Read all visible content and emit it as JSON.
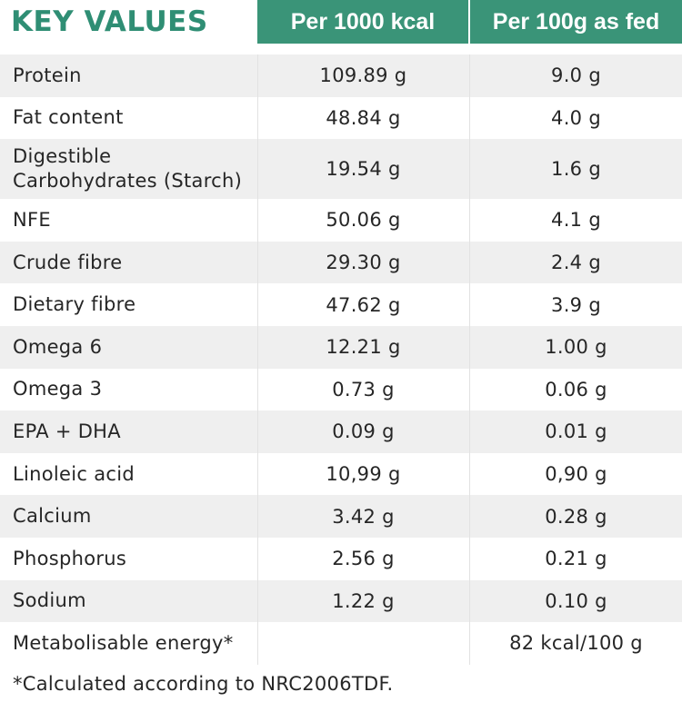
{
  "table": {
    "title": "KEY VALUES",
    "columns": [
      "Per 1000 kcal",
      "Per 100g as fed"
    ],
    "rows": [
      {
        "label": "Protein",
        "per_1000_kcal": "109.89 g",
        "per_100g": "9.0 g"
      },
      {
        "label": "Fat content",
        "per_1000_kcal": "48.84 g",
        "per_100g": "4.0 g"
      },
      {
        "label": "Digestible Carbohydrates (Starch)",
        "per_1000_kcal": "19.54 g",
        "per_100g": "1.6 g"
      },
      {
        "label": "NFE",
        "per_1000_kcal": "50.06 g",
        "per_100g": "4.1 g"
      },
      {
        "label": "Crude fibre",
        "per_1000_kcal": "29.30 g",
        "per_100g": "2.4 g"
      },
      {
        "label": "Dietary fibre",
        "per_1000_kcal": "47.62 g",
        "per_100g": "3.9 g"
      },
      {
        "label": "Omega 6",
        "per_1000_kcal": "12.21 g",
        "per_100g": "1.00 g"
      },
      {
        "label": "Omega 3",
        "per_1000_kcal": "0.73 g",
        "per_100g": "0.06 g"
      },
      {
        "label": "EPA + DHA",
        "per_1000_kcal": "0.09 g",
        "per_100g": "0.01 g"
      },
      {
        "label": "Linoleic acid",
        "per_1000_kcal": "10,99 g",
        "per_100g": "0,90 g"
      },
      {
        "label": "Calcium",
        "per_1000_kcal": "3.42 g",
        "per_100g": "0.28 g"
      },
      {
        "label": "Phosphorus",
        "per_1000_kcal": "2.56 g",
        "per_100g": "0.21 g"
      },
      {
        "label": "Sodium",
        "per_1000_kcal": "1.22 g",
        "per_100g": "0.10 g"
      },
      {
        "label": "Metabolisable energy*",
        "per_1000_kcal": "",
        "per_100g": "82 kcal/100 g"
      }
    ],
    "footnote": "*Calculated according to NRC2006TDF."
  },
  "colors": {
    "accent": "#3a9478",
    "title": "#2f8e74",
    "row_alt": "#efefef",
    "text": "#262626"
  }
}
